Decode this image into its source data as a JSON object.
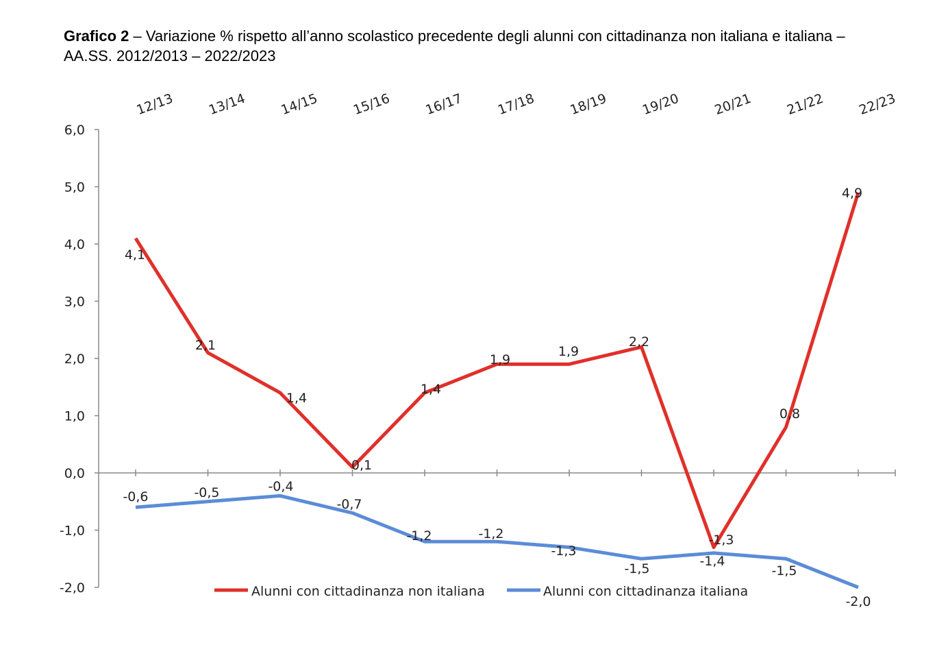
{
  "title": {
    "bold": "Grafico 2",
    "rest": " – Variazione % rispetto all’anno scolastico precedente degli alunni con cittadinanza non italiana e italiana – AA.SS. 2012/2013 – 2022/2023"
  },
  "chart_data": {
    "type": "line",
    "title": "Grafico 2 – Variazione % rispetto all’anno scolastico precedente degli alunni con cittadinanza non italiana e italiana – AA.SS. 2012/2013 – 2022/2023",
    "categories": [
      "12/13",
      "13/14",
      "14/15",
      "15/16",
      "16/17",
      "17/18",
      "18/19",
      "19/20",
      "20/21",
      "21/22",
      "22/23"
    ],
    "ylim": [
      -2,
      6
    ],
    "yticks": [
      "-2,0",
      "-1,0",
      "0,0",
      "1,0",
      "2,0",
      "3,0",
      "4,0",
      "5,0",
      "6,0"
    ],
    "legend_position": "bottom",
    "series": [
      {
        "name": "Alunni con cittadinanza non italiana",
        "color": "#e0302a",
        "values": [
          4.1,
          2.1,
          1.4,
          0.1,
          1.4,
          1.9,
          1.9,
          2.2,
          -1.3,
          0.8,
          4.9
        ],
        "labels": [
          "4,1",
          "2,1",
          "1,4",
          "0,1",
          "1,4",
          "1,9",
          "1,9",
          "2,2",
          "-1,3",
          "0,8",
          "4,9"
        ]
      },
      {
        "name": "Alunni con cittadinanza italiana",
        "color": "#5b8cd7",
        "values": [
          -0.6,
          -0.5,
          -0.4,
          -0.7,
          -1.2,
          -1.2,
          -1.3,
          -1.5,
          -1.4,
          -1.5,
          -2.0
        ],
        "labels": [
          "-0,6",
          "-0,5",
          "-0,4",
          "-0,7",
          "-1,2",
          "-1,2",
          "-1,3",
          "-1,5",
          "-1,4",
          "-1,5",
          "-2,0"
        ]
      }
    ]
  }
}
